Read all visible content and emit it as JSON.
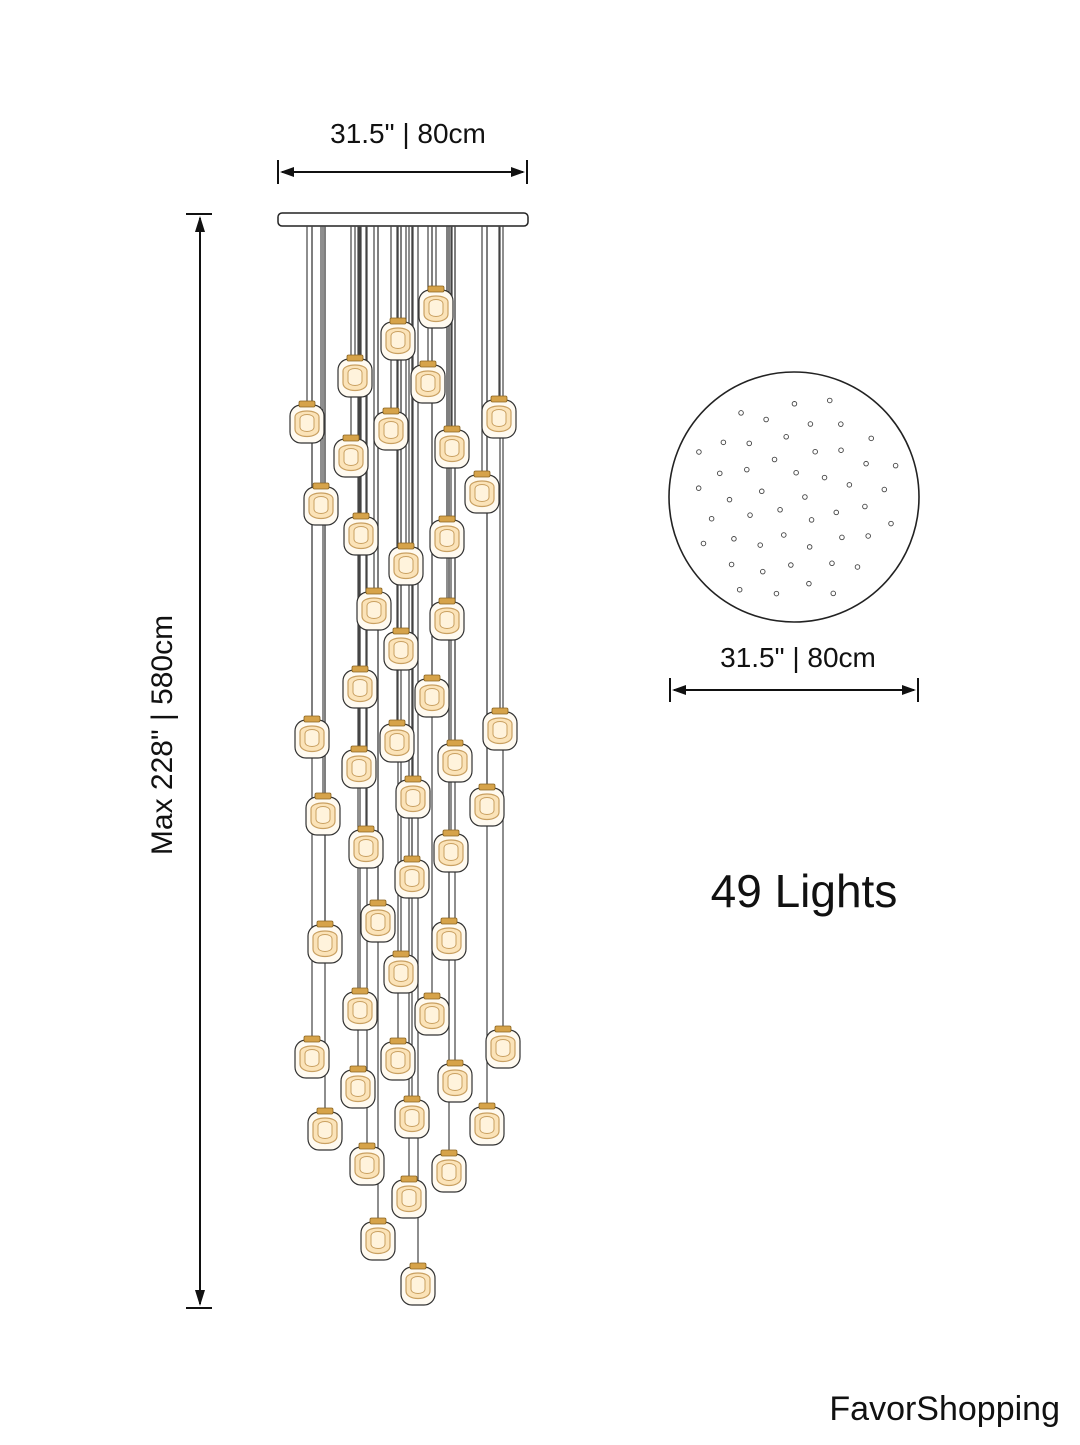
{
  "dimensions": {
    "canopy_width": "31.5\" | 80cm",
    "max_height": "Max 228\" | 580cm",
    "plate_diameter": "31.5\" | 80cm"
  },
  "light_count": "49 Lights",
  "brand": "FavorShopping"
}
